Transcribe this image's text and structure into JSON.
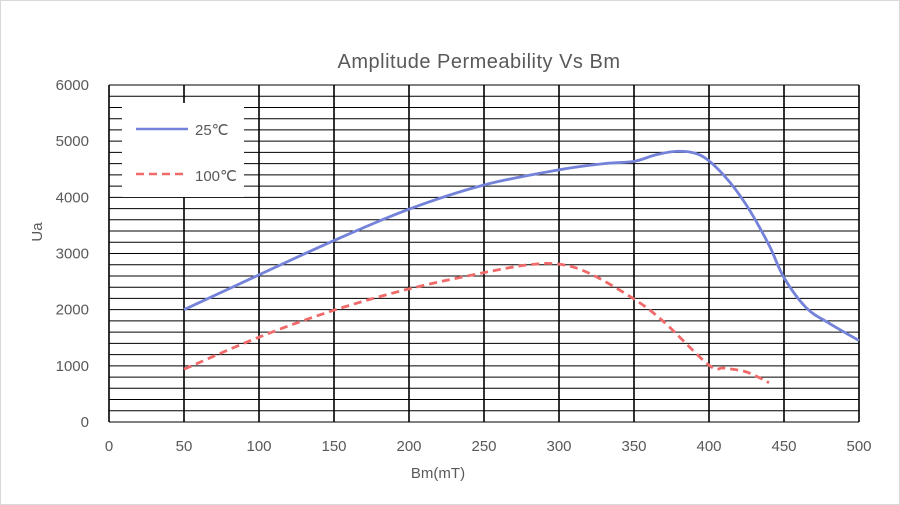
{
  "chart_data": {
    "type": "line",
    "title": "Amplitude Permeability Vs Bm",
    "xlabel": "Bm(mT)",
    "ylabel": "Ua",
    "xlim": [
      0,
      500
    ],
    "ylim": [
      0,
      6000
    ],
    "xticks": [
      0,
      50,
      100,
      150,
      200,
      250,
      300,
      350,
      400,
      450,
      500
    ],
    "yticks": [
      0,
      1000,
      2000,
      3000,
      4000,
      5000,
      6000
    ],
    "x_major_step": 50,
    "y_minor_step": 200,
    "grid": true,
    "legend_position": "top-left",
    "series": [
      {
        "name": "25℃",
        "color": "#7483d9",
        "dash": "solid",
        "points": [
          [
            50,
            2000
          ],
          [
            100,
            2620
          ],
          [
            150,
            3230
          ],
          [
            200,
            3790
          ],
          [
            250,
            4220
          ],
          [
            300,
            4490
          ],
          [
            330,
            4600
          ],
          [
            350,
            4640
          ],
          [
            365,
            4760
          ],
          [
            380,
            4820
          ],
          [
            395,
            4740
          ],
          [
            410,
            4390
          ],
          [
            425,
            3860
          ],
          [
            440,
            3150
          ],
          [
            450,
            2570
          ],
          [
            465,
            2030
          ],
          [
            480,
            1760
          ],
          [
            500,
            1450
          ]
        ]
      },
      {
        "name": "100℃",
        "color": "#f06a6a",
        "dash": "dashed",
        "points": [
          [
            50,
            940
          ],
          [
            100,
            1510
          ],
          [
            150,
            1990
          ],
          [
            200,
            2370
          ],
          [
            250,
            2660
          ],
          [
            280,
            2800
          ],
          [
            300,
            2810
          ],
          [
            320,
            2650
          ],
          [
            350,
            2190
          ],
          [
            370,
            1780
          ],
          [
            400,
            1010
          ],
          [
            410,
            960
          ],
          [
            425,
            890
          ],
          [
            440,
            700
          ]
        ]
      }
    ]
  }
}
